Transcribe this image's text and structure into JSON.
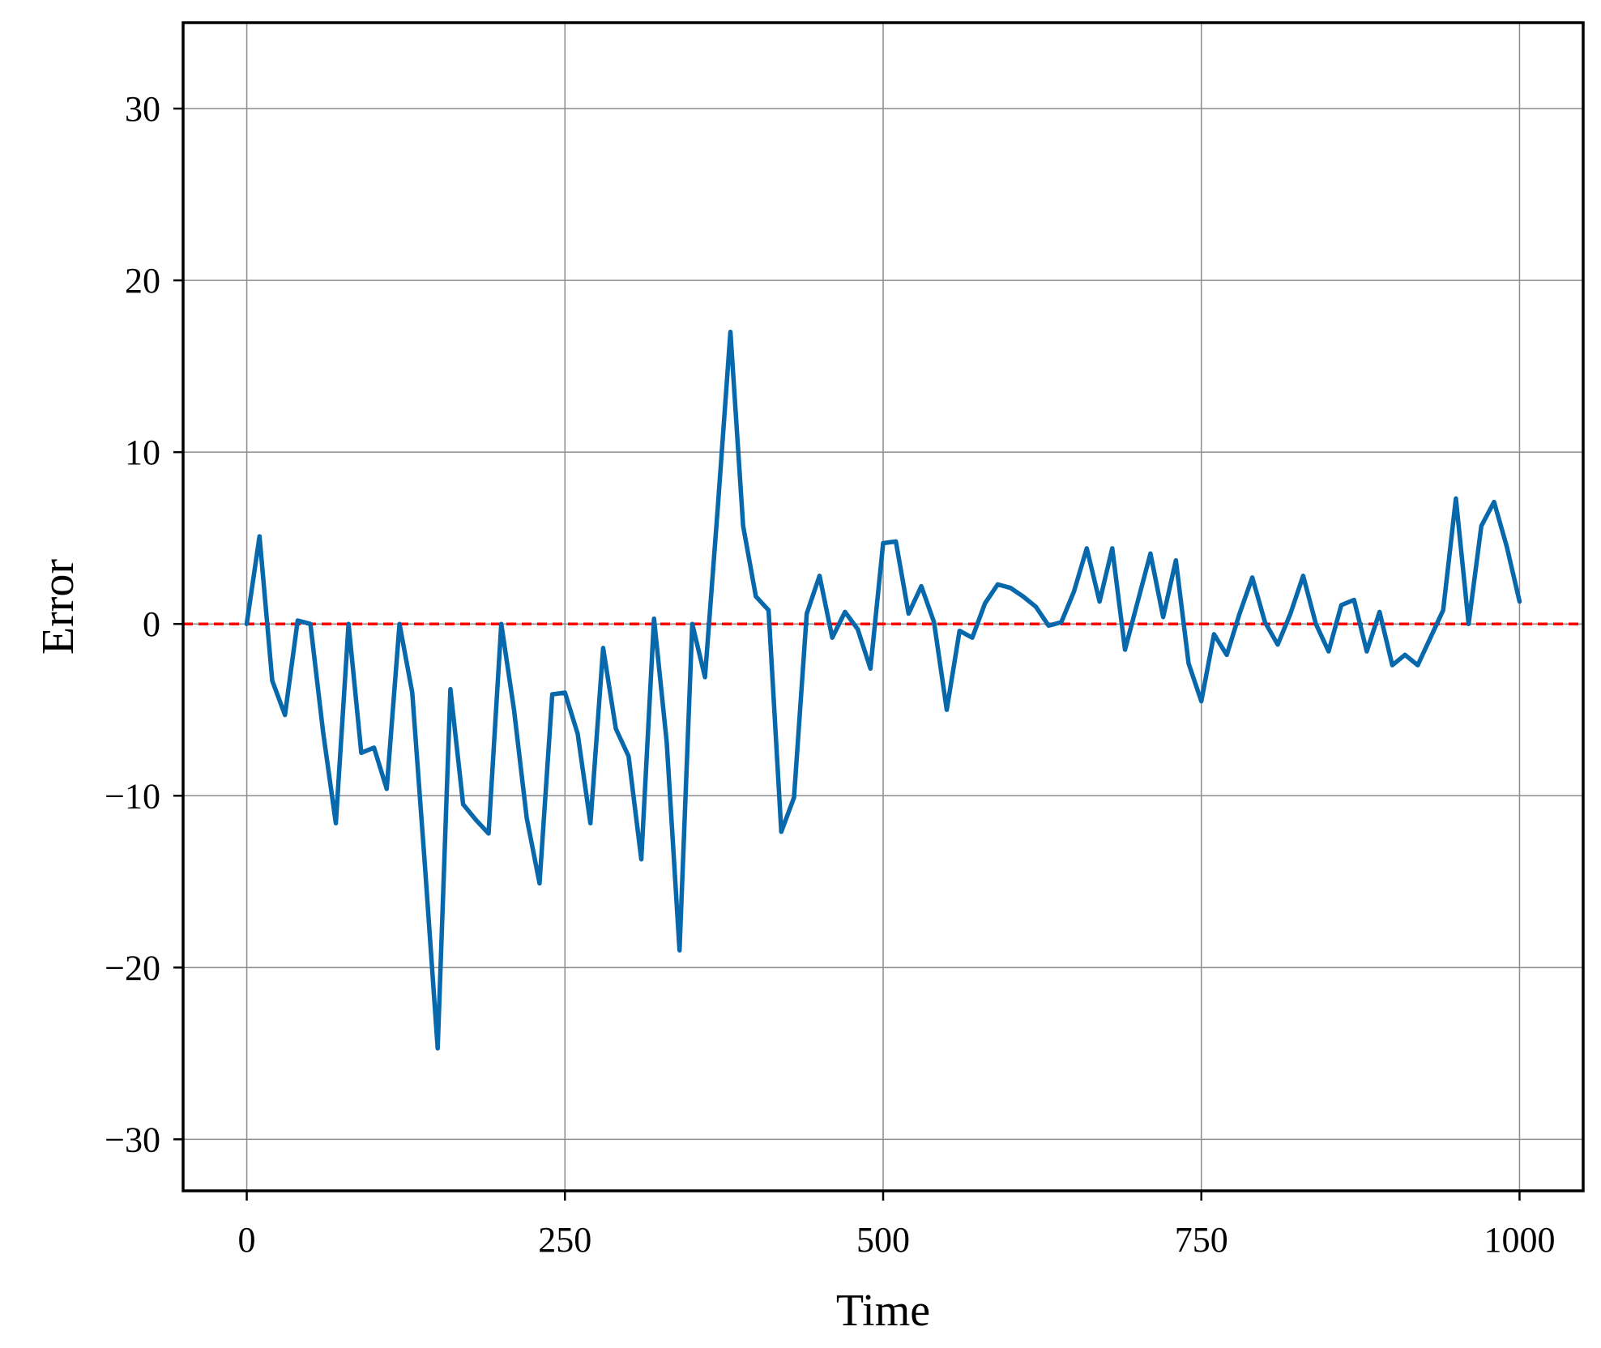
{
  "chart_data": {
    "type": "line",
    "title": "",
    "xlabel": "Time",
    "ylabel": "Error",
    "xlim": [
      -50,
      1050
    ],
    "ylim": [
      -33,
      35
    ],
    "xticks": [
      0,
      250,
      500,
      750,
      1000
    ],
    "xtick_labels": [
      "0",
      "250",
      "500",
      "750",
      "1000"
    ],
    "yticks": [
      -30,
      -20,
      -10,
      0,
      10,
      20,
      30
    ],
    "ytick_labels": [
      "−30",
      "−20",
      "−10",
      "0",
      "10",
      "20",
      "30"
    ],
    "grid": true,
    "legend": "none",
    "series": [
      {
        "color": "#0868ac",
        "x": [
          0,
          10,
          20,
          30,
          40,
          50,
          60,
          70,
          80,
          90,
          100,
          110,
          120,
          130,
          140,
          150,
          160,
          170,
          180,
          190,
          200,
          210,
          220,
          230,
          240,
          250,
          260,
          270,
          280,
          290,
          300,
          310,
          320,
          330,
          340,
          350,
          360,
          370,
          380,
          390,
          400,
          410,
          420,
          430,
          440,
          450,
          460,
          470,
          480,
          490,
          500,
          510,
          520,
          530,
          540,
          550,
          560,
          570,
          580,
          590,
          600,
          610,
          620,
          630,
          640,
          650,
          660,
          670,
          680,
          690,
          700,
          710,
          720,
          730,
          740,
          750,
          760,
          770,
          780,
          790,
          800,
          810,
          820,
          830,
          840,
          850,
          860,
          870,
          880,
          890,
          900,
          910,
          920,
          930,
          940,
          950,
          960,
          970,
          980,
          990,
          1000
        ],
        "y": [
          0,
          5.1,
          -3.3,
          -5.3,
          0.2,
          0,
          -6.3,
          -11.6,
          0,
          -7.5,
          -7.2,
          -9.6,
          0,
          -4,
          -14.1,
          -24.7,
          -3.8,
          -10.5,
          -11.4,
          -12.2,
          0,
          -5,
          -11.3,
          -15.1,
          -4.1,
          -4,
          -6.4,
          -11.6,
          -1.4,
          -6.1,
          -7.7,
          -13.7,
          0.3,
          -6.9,
          -19,
          0,
          -3.1,
          6.7,
          17,
          5.7,
          1.6,
          0.8,
          -12.1,
          -10.1,
          0.6,
          2.8,
          -0.8,
          0.7,
          -0.3,
          -2.6,
          4.7,
          4.8,
          0.6,
          2.2,
          0.1,
          -5,
          -0.4,
          -0.8,
          1.2,
          2.3,
          2.1,
          1.6,
          1,
          -0.1,
          0.1,
          1.9,
          4.4,
          1.3,
          4.4,
          -1.5,
          1.3,
          4.1,
          0.4,
          3.7,
          -2.3,
          -4.5,
          -0.6,
          -1.8,
          0.6,
          2.7,
          0.1,
          -1.2,
          0.6,
          2.8,
          0,
          -1.6,
          1.1,
          1.4,
          -1.6,
          0.7,
          -2.4,
          -1.8,
          -2.4,
          -0.8,
          0.8,
          7.3,
          0,
          5.7,
          7.1,
          4.5,
          1.3
        ]
      }
    ],
    "reference_line": {
      "y": 0,
      "color": "#ff0000",
      "style": "dashed"
    }
  }
}
